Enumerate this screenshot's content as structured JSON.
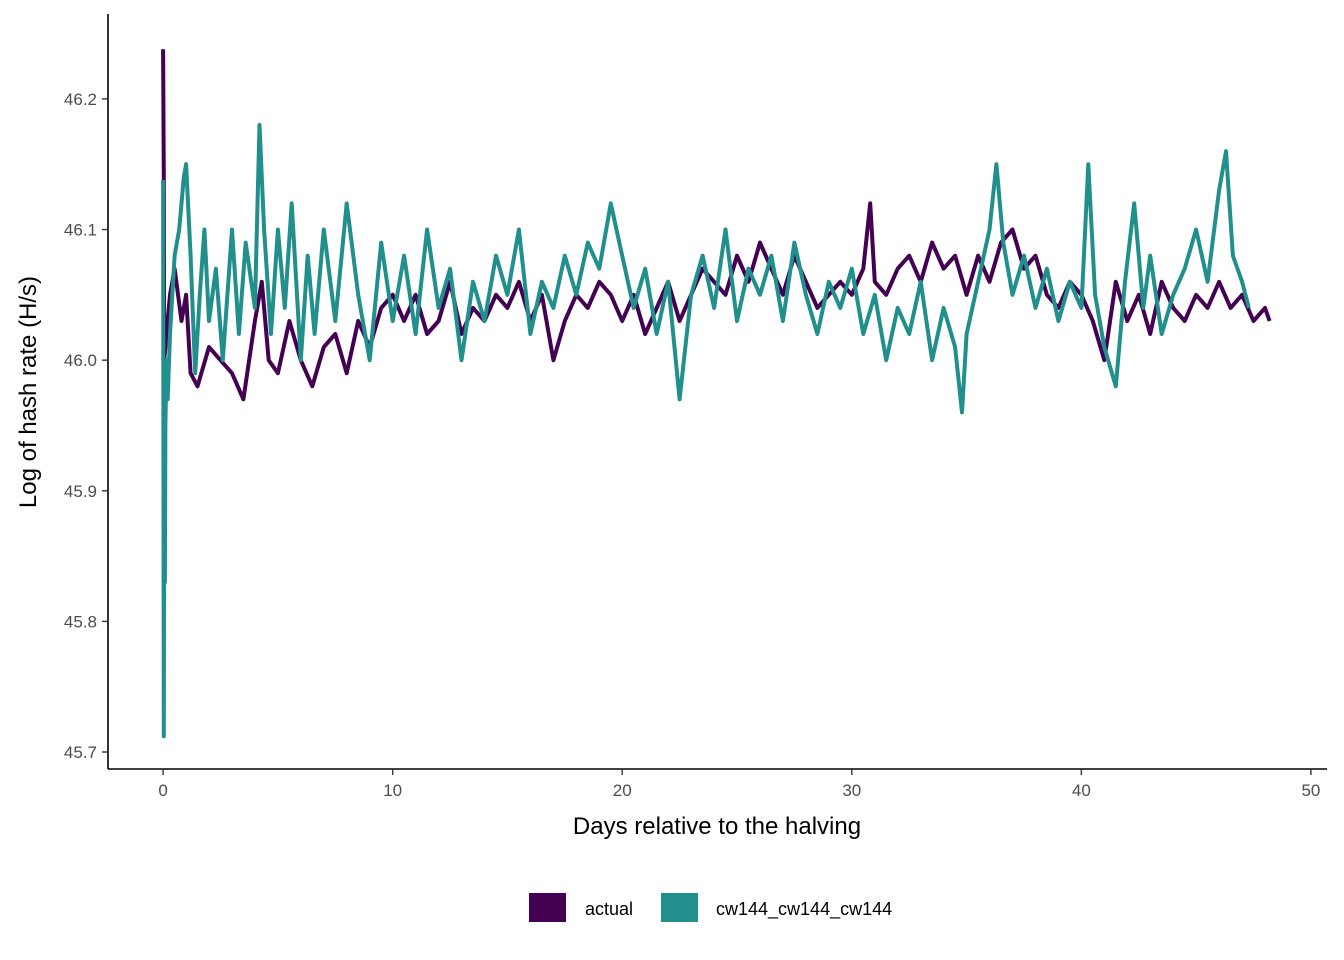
{
  "chart_data": {
    "type": "line",
    "title": "",
    "xlabel": "Days relative to the halving",
    "ylabel": "Log of hash rate (H/s)",
    "xlim": [
      -2.4,
      50.7
    ],
    "ylim": [
      45.687,
      46.265
    ],
    "x_ticks": [
      0,
      10,
      20,
      30,
      40,
      50
    ],
    "y_ticks": [
      45.7,
      45.8,
      45.9,
      46.0,
      46.1,
      46.2
    ],
    "x_tick_labels": [
      "0",
      "10",
      "20",
      "30",
      "40",
      "50"
    ],
    "y_tick_labels": [
      "45.7",
      "45.8",
      "45.9",
      "46.0",
      "46.1",
      "46.2"
    ],
    "grid": false,
    "legend_position": "bottom",
    "series": [
      {
        "name": "actual",
        "color": "#440154",
        "x": [
          0,
          0.03,
          0.05,
          0.1,
          0.3,
          0.5,
          0.8,
          1.0,
          1.2,
          1.5,
          2.0,
          2.5,
          3.0,
          3.5,
          4.0,
          4.3,
          4.6,
          5.0,
          5.5,
          6.0,
          6.5,
          7.0,
          7.5,
          8.0,
          8.5,
          9.0,
          9.5,
          10.0,
          10.5,
          11.0,
          11.5,
          12.0,
          12.5,
          13.0,
          13.5,
          14.0,
          14.5,
          15.0,
          15.5,
          16.0,
          16.5,
          17.0,
          17.5,
          18.0,
          18.5,
          19.0,
          19.5,
          20.0,
          20.5,
          21.0,
          21.5,
          22.0,
          22.5,
          23.0,
          23.5,
          24.0,
          24.5,
          25.0,
          25.5,
          26.0,
          26.5,
          27.0,
          27.5,
          28.0,
          28.5,
          29.0,
          29.5,
          30.0,
          30.5,
          30.8,
          31.0,
          31.5,
          32.0,
          32.5,
          33.0,
          33.5,
          34.0,
          34.5,
          35.0,
          35.5,
          36.0,
          36.5,
          37.0,
          37.5,
          38.0,
          38.5,
          39.0,
          39.5,
          40.0,
          40.5,
          41.0,
          41.5,
          42.0,
          42.5,
          43.0,
          43.5,
          44.0,
          44.5,
          45.0,
          45.5,
          46.0,
          46.5,
          47.0,
          47.5,
          48.0,
          48.2
        ],
        "y": [
          46.238,
          46.14,
          46.0,
          46.01,
          46.05,
          46.07,
          46.03,
          46.05,
          45.99,
          45.98,
          46.01,
          46.0,
          45.99,
          45.97,
          46.03,
          46.06,
          46.0,
          45.99,
          46.03,
          46.0,
          45.98,
          46.01,
          46.02,
          45.99,
          46.03,
          46.01,
          46.04,
          46.05,
          46.03,
          46.05,
          46.02,
          46.03,
          46.06,
          46.02,
          46.04,
          46.03,
          46.05,
          46.04,
          46.06,
          46.03,
          46.05,
          46.0,
          46.03,
          46.05,
          46.04,
          46.06,
          46.05,
          46.03,
          46.05,
          46.02,
          46.04,
          46.06,
          46.03,
          46.05,
          46.07,
          46.06,
          46.05,
          46.08,
          46.06,
          46.09,
          46.07,
          46.05,
          46.08,
          46.06,
          46.04,
          46.05,
          46.06,
          46.05,
          46.07,
          46.12,
          46.06,
          46.05,
          46.07,
          46.08,
          46.06,
          46.09,
          46.07,
          46.08,
          46.05,
          46.08,
          46.06,
          46.09,
          46.1,
          46.07,
          46.08,
          46.05,
          46.04,
          46.06,
          46.05,
          46.03,
          46.0,
          46.06,
          46.03,
          46.05,
          46.02,
          46.06,
          46.04,
          46.03,
          46.05,
          46.04,
          46.06,
          46.04,
          46.05,
          46.03,
          46.04,
          46.03
        ]
      },
      {
        "name": "cw144_cw144_cw144",
        "color": "#21908C",
        "x": [
          0,
          0.03,
          0.05,
          0.08,
          0.1,
          0.15,
          0.2,
          0.3,
          0.5,
          0.7,
          0.9,
          1.0,
          1.2,
          1.4,
          1.6,
          1.8,
          2.0,
          2.3,
          2.6,
          3.0,
          3.3,
          3.6,
          4.0,
          4.2,
          4.4,
          4.7,
          5.0,
          5.3,
          5.6,
          6.0,
          6.3,
          6.6,
          7.0,
          7.5,
          8.0,
          8.5,
          9.0,
          9.5,
          10.0,
          10.5,
          11.0,
          11.5,
          12.0,
          12.5,
          13.0,
          13.5,
          14.0,
          14.5,
          15.0,
          15.5,
          16.0,
          16.5,
          17.0,
          17.5,
          18.0,
          18.5,
          19.0,
          19.5,
          20.0,
          20.5,
          21.0,
          21.5,
          22.0,
          22.5,
          23.0,
          23.5,
          24.0,
          24.5,
          25.0,
          25.5,
          26.0,
          26.5,
          27.0,
          27.5,
          28.0,
          28.5,
          29.0,
          29.5,
          30.0,
          30.5,
          31.0,
          31.5,
          32.0,
          32.5,
          33.0,
          33.5,
          34.0,
          34.5,
          34.8,
          35.0,
          35.5,
          36.0,
          36.3,
          36.6,
          37.0,
          37.5,
          38.0,
          38.5,
          39.0,
          39.5,
          40.0,
          40.3,
          40.6,
          41.0,
          41.5,
          41.9,
          42.3,
          42.7,
          43.0,
          43.5,
          44.0,
          44.5,
          45.0,
          45.5,
          46.0,
          46.3,
          46.6,
          47.0,
          47.3
        ],
        "y": [
          46.138,
          45.712,
          45.9,
          45.83,
          45.95,
          46.0,
          45.97,
          46.02,
          46.08,
          46.1,
          46.14,
          46.15,
          46.08,
          45.99,
          46.05,
          46.1,
          46.03,
          46.07,
          46.0,
          46.1,
          46.02,
          46.09,
          46.04,
          46.18,
          46.1,
          46.02,
          46.1,
          46.04,
          46.12,
          46.0,
          46.08,
          46.02,
          46.1,
          46.03,
          46.12,
          46.05,
          46.0,
          46.09,
          46.03,
          46.08,
          46.02,
          46.1,
          46.04,
          46.07,
          46.0,
          46.06,
          46.03,
          46.08,
          46.05,
          46.1,
          46.02,
          46.06,
          46.04,
          46.08,
          46.05,
          46.09,
          46.07,
          46.12,
          46.08,
          46.04,
          46.07,
          46.02,
          46.06,
          45.97,
          46.05,
          46.08,
          46.04,
          46.1,
          46.03,
          46.07,
          46.05,
          46.08,
          46.03,
          46.09,
          46.05,
          46.02,
          46.06,
          46.04,
          46.07,
          46.02,
          46.05,
          46.0,
          46.04,
          46.02,
          46.06,
          46.0,
          46.04,
          46.01,
          45.96,
          46.02,
          46.06,
          46.1,
          46.15,
          46.09,
          46.05,
          46.08,
          46.04,
          46.07,
          46.03,
          46.06,
          46.04,
          46.15,
          46.05,
          46.01,
          45.98,
          46.06,
          46.12,
          46.04,
          46.08,
          46.02,
          46.05,
          46.07,
          46.1,
          46.06,
          46.13,
          46.16,
          46.08,
          46.06,
          46.04
        ]
      }
    ]
  }
}
